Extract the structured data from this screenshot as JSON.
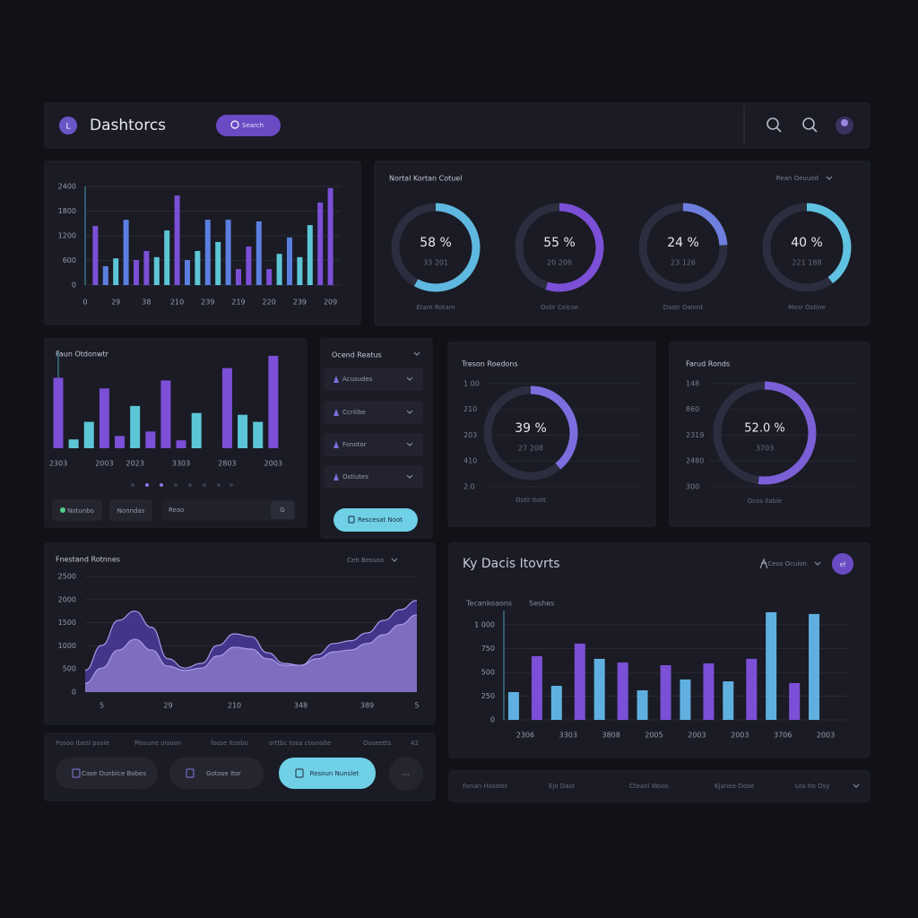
{
  "header": {
    "logo": "L",
    "title": "Dashtorcs",
    "search": "Search"
  },
  "chart_data": [
    {
      "type": "bar",
      "categories": [
        "0",
        null,
        null,
        "29",
        null,
        null,
        "38",
        null,
        null,
        "210",
        null,
        null,
        "239",
        null,
        null,
        "219",
        null,
        null,
        "220",
        null,
        null,
        "239",
        null,
        null,
        "209"
      ],
      "values": [
        null,
        1440,
        460,
        650,
        1590,
        610,
        830,
        680,
        1330,
        2180,
        610,
        830,
        1590,
        1050,
        1590,
        390,
        940,
        1550,
        390,
        760,
        1160,
        680,
        1460,
        2010,
        2360
      ],
      "colors": [
        null,
        "#7b4fd6",
        "#5b7fe0",
        "#5cc6d6",
        "#5b7fe0",
        "#7b4fd6",
        "#7b4fd6",
        "#5cc6d6",
        "#5cc6d6",
        "#7b4fd6",
        "#5b7fe0",
        "#5cc6d6",
        "#5b7fe0",
        "#5cc6d6",
        "#5b7fe0",
        "#7b4fd6",
        "#7b4fd6",
        "#5b7fe0",
        "#7b4fd6",
        "#5cc6d6",
        "#5b7fe0",
        "#5cc6d6",
        "#5cc6d6",
        "#7b4fd6",
        "#7b4fd6"
      ],
      "ylim": [
        0,
        2400
      ],
      "yticks": [
        0,
        600,
        1200,
        1800,
        2400
      ],
      "grid": true
    },
    {
      "type": "gauge",
      "title": "Nortal Kortan Cotuel",
      "dropdown": "Rean Oeuuod",
      "categories": [
        "Etam Rotam",
        "Ostir Celcse",
        "Dastr Oalent",
        "Mesr Ostine"
      ],
      "values": [
        58,
        55,
        24,
        40
      ],
      "value_labels": [
        "58 %",
        "55 %",
        "24 %",
        "40 %"
      ],
      "sublabels": [
        "33 201",
        "20 208",
        "23 126",
        "221 188"
      ],
      "colors": [
        "#5fb8e0",
        "#7b4fd6",
        "#6f7fe0",
        "#5fc2e0"
      ],
      "ylim": [
        0,
        100
      ]
    },
    {
      "type": "bar",
      "title": "Faun Otdonwtr",
      "categories": [
        "2303",
        null,
        null,
        "2003",
        null,
        "2023",
        null,
        null,
        "3303",
        null,
        null,
        "2803",
        null,
        null,
        "2003"
      ],
      "values": [
        80,
        10,
        30,
        68,
        14,
        48,
        19,
        77,
        9,
        40,
        null,
        91,
        38,
        30,
        105
      ],
      "colors": [
        "#7b4fd6",
        "#5cc6d6",
        "#5cc6d6",
        "#7b4fd6",
        "#7b4fd6",
        "#5cc6d6",
        "#7b4fd6",
        "#7b4fd6",
        "#7b4fd6",
        "#5cc6d6",
        null,
        "#7b4fd6",
        "#5cc6d6",
        "#5cc6d6",
        "#7b4fd6"
      ],
      "ylim": [
        0,
        110
      ]
    },
    {
      "type": "gauge",
      "title": "Treson Roedons",
      "categories": [
        "Ostil Itolit"
      ],
      "values": [
        39
      ],
      "value_labels": [
        "39 %"
      ],
      "sublabels": [
        "27 208"
      ],
      "scale_labels": [
        "1 00",
        "210",
        "203",
        "410",
        "2.0"
      ],
      "colors": [
        "#7b6fe0"
      ],
      "ylim": [
        0,
        100
      ]
    },
    {
      "type": "gauge",
      "title": "Farud Ronds",
      "categories": [
        "Ocos Ilable"
      ],
      "values": [
        52
      ],
      "value_labels": [
        "52.0 %"
      ],
      "sublabels": [
        "3703"
      ],
      "scale_labels": [
        "148",
        "860",
        "2319",
        "2480",
        "300"
      ],
      "colors": [
        "#7b5fd6"
      ],
      "ylim": [
        0,
        100
      ]
    },
    {
      "type": "area",
      "title": "Fnestand Rotnnes",
      "dropdown": "Ceh Bessoo",
      "categories": [
        null,
        "5",
        null,
        null,
        null,
        "29",
        null,
        null,
        null,
        "210",
        null,
        null,
        null,
        "348",
        null,
        null,
        null,
        "389",
        null,
        null,
        "5"
      ],
      "series": [
        {
          "color": "#4a3a9c",
          "values": [
            470,
            1010,
            1550,
            1750,
            1400,
            720,
            520,
            620,
            1010,
            1260,
            1200,
            850,
            620,
            580,
            810,
            1050,
            1110,
            1280,
            1550,
            1780,
            1980
          ]
        },
        {
          "color": "#8a78c8",
          "values": [
            190,
            520,
            910,
            1140,
            910,
            560,
            470,
            520,
            780,
            970,
            930,
            720,
            580,
            580,
            720,
            870,
            910,
            1050,
            1240,
            1460,
            1670
          ]
        }
      ],
      "ylim": [
        0,
        2500
      ],
      "yticks": [
        0,
        500,
        1000,
        1500,
        2000,
        2500
      ],
      "grid": true
    },
    {
      "type": "bar",
      "title": "Ky Dacis Itovrts",
      "dropdown": "Ceos Ocuion",
      "categories": [
        "2306",
        "3303",
        "3808",
        "2005",
        "2003",
        "2003",
        "3706",
        "2003"
      ],
      "series": [
        {
          "name": "Tecankoaons",
          "color": "#5fb0e0",
          "values": [
            292,
            358,
            642,
            311,
            425,
            405,
            1132,
            1113
          ]
        },
        {
          "name": "Seshes",
          "color": "#7b4fd6",
          "values": [
            670,
            802,
            604,
            575,
            594,
            642,
            387,
            null
          ]
        }
      ],
      "ylim": [
        0,
        1150
      ],
      "yticks": [
        0,
        250,
        500,
        750,
        {
          "value": 1000,
          "label": "1 000"
        }
      ],
      "grid": true
    }
  ],
  "controls": {
    "bar_buttons": [
      "Notunbo",
      "Nonndas"
    ],
    "input": "Reao",
    "input_button": "G",
    "dropdown": {
      "title": "Ocend Reatus",
      "items": [
        "Acusudes",
        "Ccnlibe",
        "Fonotor",
        "Ostiutes"
      ],
      "button": "Rescesat Noot"
    },
    "avatar": "ef",
    "bottom_texts": [
      "Fosoo Ibesl posie",
      "Piosune oisoon",
      "fosse Itosbo",
      "srttbc tosa cosnalte",
      "Ooseetts",
      "42"
    ],
    "bottom_buttons": [
      "Case Ounbice Bobes",
      "Gotose Itor",
      "Resoun Nunslet",
      "..."
    ],
    "footer_texts": [
      "Fonan Hosster",
      "Ejo Dast",
      "Cteanl Woos",
      "Kjaneo-Dose",
      "Los tio Osy"
    ]
  }
}
